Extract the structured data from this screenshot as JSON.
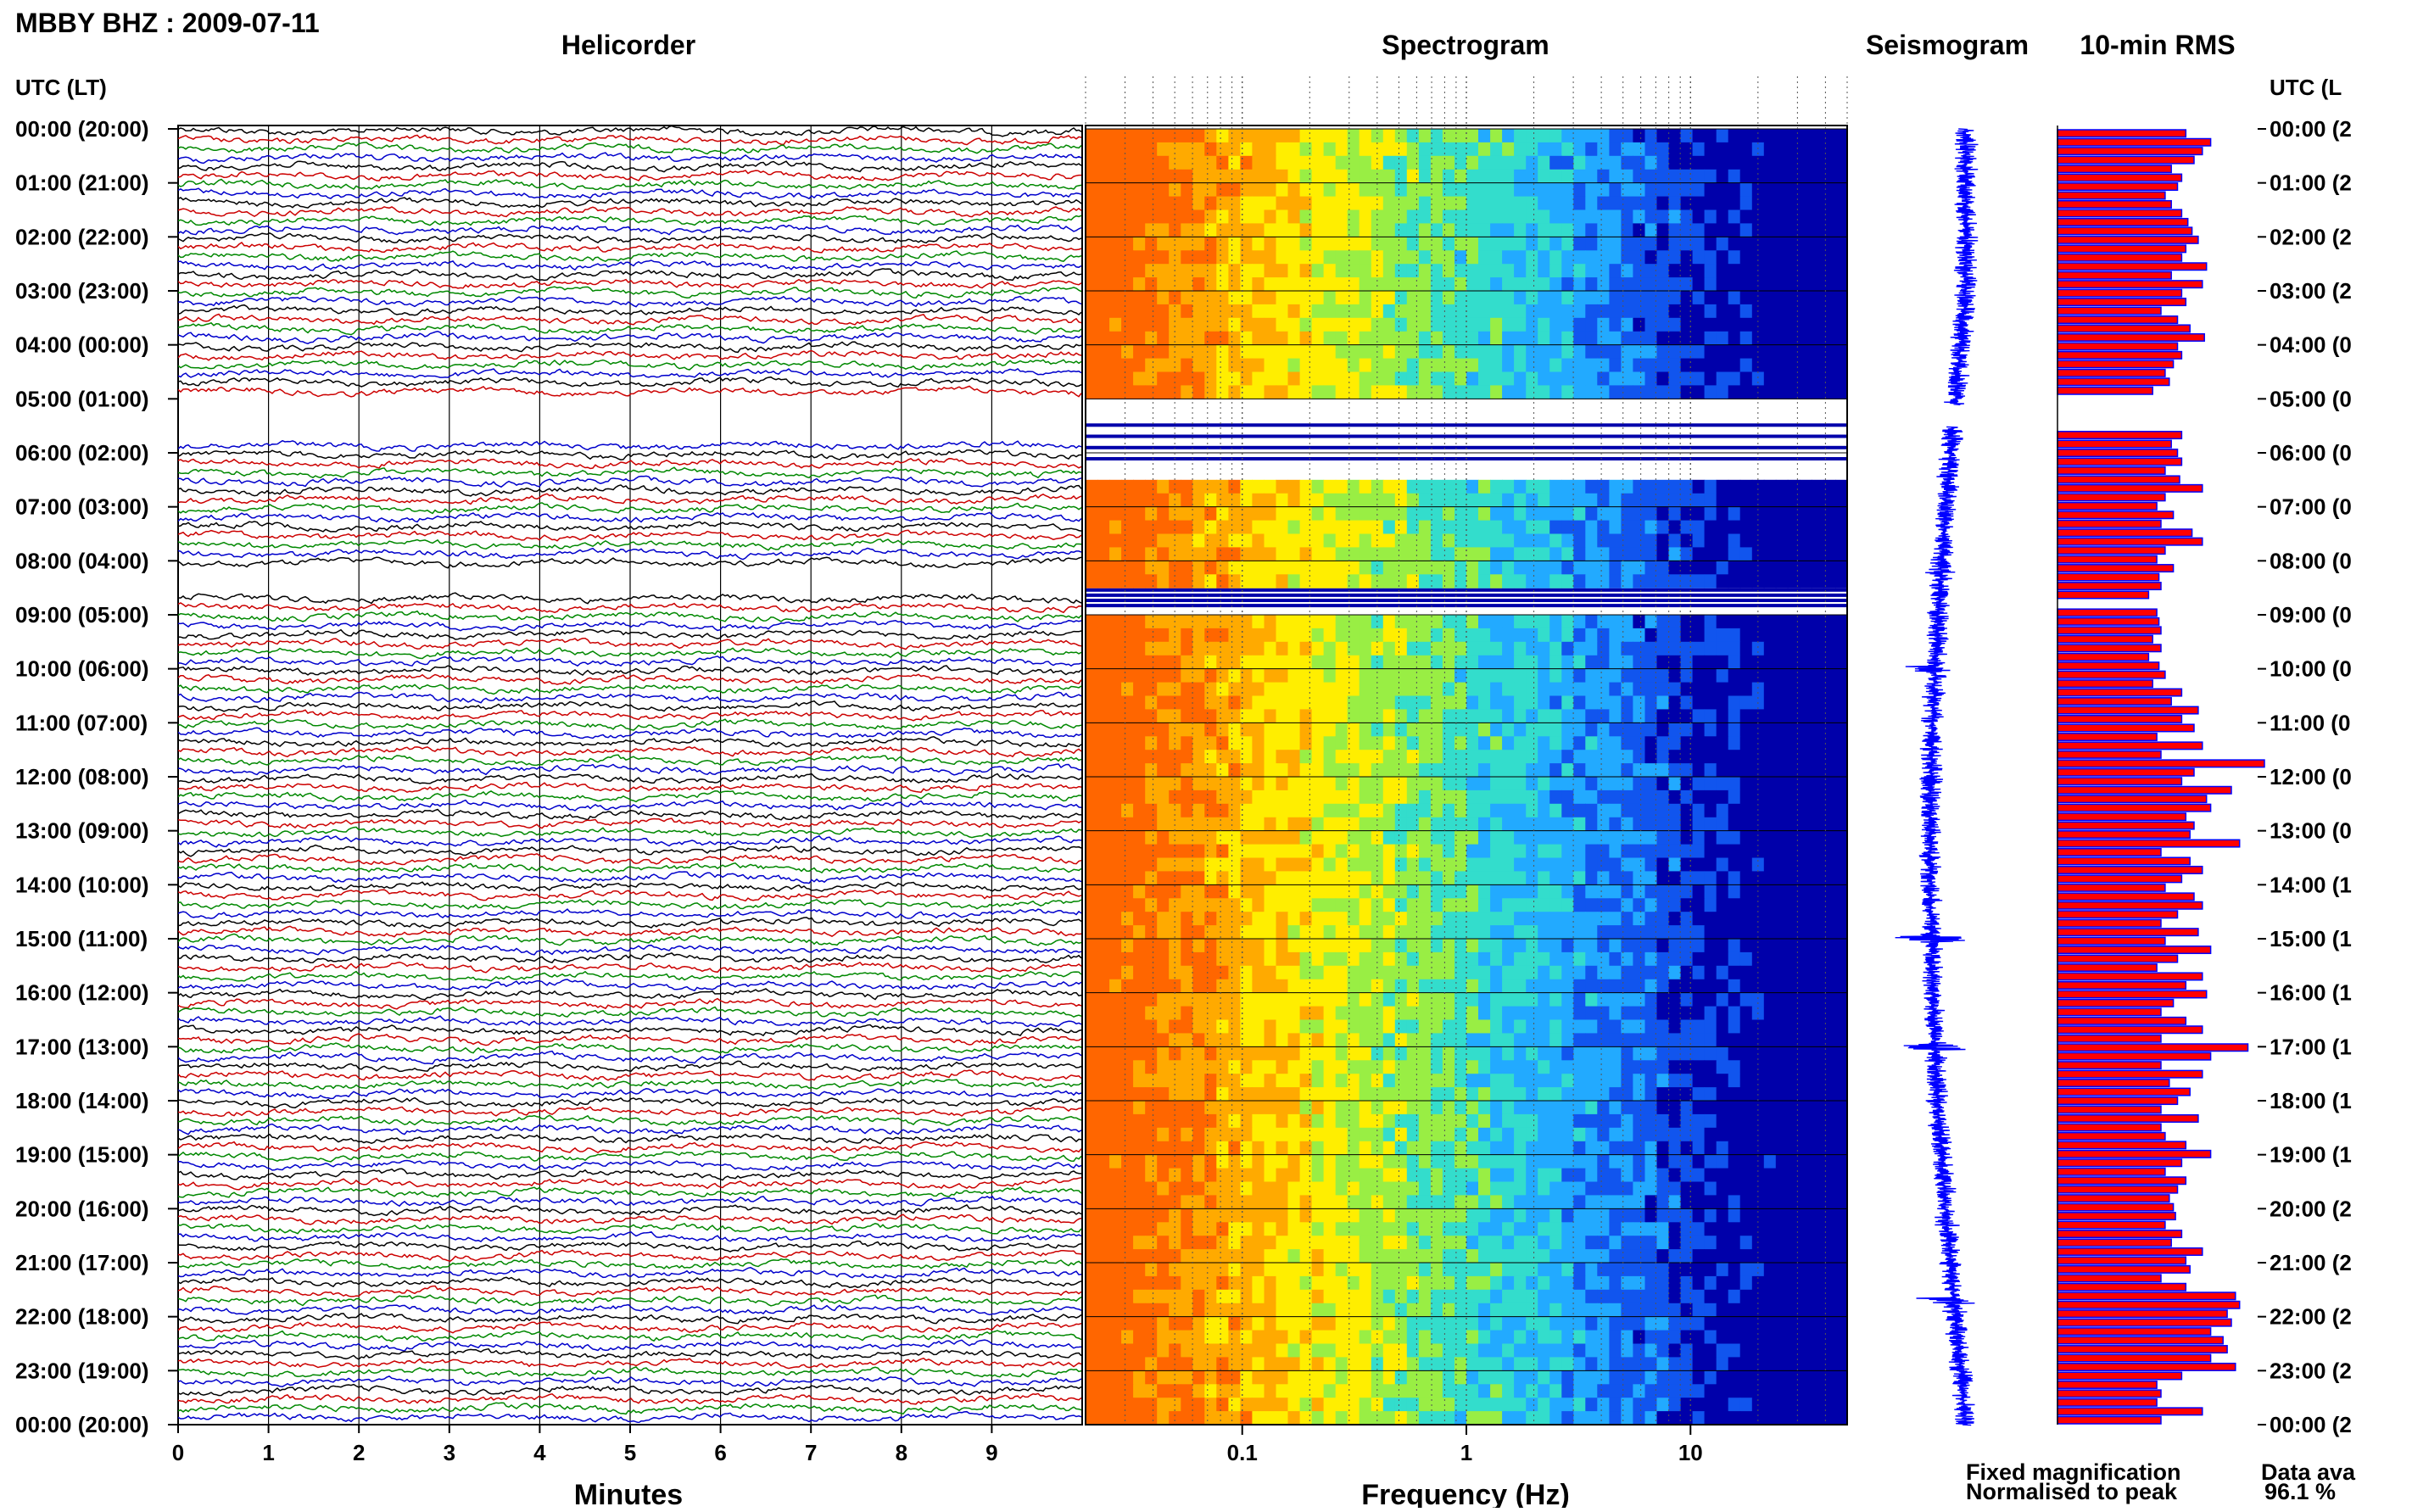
{
  "header": {
    "station_title": "MBBY BHZ : 2009-07-11"
  },
  "panels": {
    "helicorder": "Helicorder",
    "spectrogram": "Spectrogram",
    "seismogram": "Seismogram",
    "rms": "10-min RMS"
  },
  "axis": {
    "utc_label_left": "UTC (LT)",
    "utc_label_right": "UTC (L",
    "minutes_label": "Minutes",
    "frequency_label": "Frequency (Hz)"
  },
  "legend": {
    "fixed": "Fixed magnification",
    "fixed_color": "#0000ff",
    "normalised": "Normalised to peak",
    "normalised_color": "#ff0000"
  },
  "availability": {
    "label": "Data ava",
    "value": "96.1 %"
  },
  "chart_data": [
    {
      "type": "line",
      "title": "Helicorder",
      "xlabel": "Minutes",
      "x_ticks": [
        "0",
        "1",
        "2",
        "3",
        "4",
        "5",
        "6",
        "7",
        "8",
        "9"
      ],
      "xlim": [
        0,
        10
      ],
      "y_tick_labels_left": [
        "00:00 (20:00)",
        "01:00 (21:00)",
        "02:00 (22:00)",
        "03:00 (23:00)",
        "04:00 (00:00)",
        "05:00 (01:00)",
        "06:00 (02:00)",
        "07:00 (03:00)",
        "08:00 (04:00)",
        "09:00 (05:00)",
        "10:00 (06:00)",
        "11:00 (07:00)",
        "12:00 (08:00)",
        "13:00 (09:00)",
        "14:00 (10:00)",
        "15:00 (11:00)",
        "16:00 (12:00)",
        "17:00 (13:00)",
        "18:00 (14:00)",
        "19:00 (15:00)",
        "20:00 (16:00)",
        "21:00 (17:00)",
        "22:00 (18:00)",
        "23:00 (19:00)",
        "00:00 (20:00)"
      ],
      "y_tick_labels_right": [
        "00:00 (2",
        "01:00 (2",
        "02:00 (2",
        "03:00 (2",
        "04:00 (0",
        "05:00 (0",
        "06:00 (0",
        "07:00 (0",
        "08:00 (0",
        "09:00 (0",
        "10:00 (0",
        "11:00 (0",
        "12:00 (0",
        "13:00 (0",
        "14:00 (1",
        "15:00 (1",
        "16:00 (1",
        "17:00 (1",
        "18:00 (1",
        "19:00 (1",
        "20:00 (2",
        "21:00 (2",
        "22:00 (2",
        "23:00 (2",
        "00:00 (2"
      ],
      "trace_colors": [
        "#000000",
        "#cc0000",
        "#008800",
        "#0000cc"
      ],
      "traces_per_hour": 6,
      "gaps_hours": [
        [
          4.9,
          5.8
        ],
        [
          8.1,
          8.6
        ]
      ]
    },
    {
      "type": "heatmap",
      "title": "Spectrogram",
      "xlabel": "Frequency (Hz)",
      "x_scale": "log",
      "x_ticks": [
        "0.1",
        "1",
        "10"
      ],
      "xlim": [
        0.02,
        50
      ],
      "colormap": [
        "#ff6600",
        "#ffaa00",
        "#ffee00",
        "#99ee44",
        "#33ddcc",
        "#22aaff",
        "#1155ee",
        "#0000aa"
      ],
      "gaps_hours": [
        [
          5.0,
          6.3
        ],
        [
          8.3,
          8.9
        ]
      ]
    },
    {
      "type": "line",
      "title": "Seismogram",
      "color": "#0000ff",
      "gaps_hours": [
        [
          5.1,
          5.5
        ]
      ],
      "peak_hours": [
        [
          8.2,
          0.2
        ],
        [
          10.0,
          0.4
        ],
        [
          15.0,
          0.5
        ],
        [
          17.0,
          0.6
        ],
        [
          21.7,
          0.6
        ]
      ]
    },
    {
      "type": "bar",
      "title": "10-min RMS",
      "orientation": "horizontal",
      "colors": {
        "fixed": "#0000ff",
        "normalised": "#ff0000"
      },
      "xlim": [
        0,
        1
      ],
      "bins_per_hour": 6,
      "values": [
        0.62,
        0.74,
        0.7,
        0.66,
        0.55,
        0.6,
        0.58,
        0.52,
        0.55,
        0.6,
        0.63,
        0.65,
        0.68,
        0.62,
        0.6,
        0.72,
        0.55,
        0.7,
        0.6,
        0.62,
        0.5,
        0.58,
        0.64,
        0.71,
        0.58,
        0.6,
        0.56,
        0.52,
        0.54,
        0.46,
        0,
        0,
        0,
        0,
        0.6,
        0.55,
        0.58,
        0.6,
        0.52,
        0.59,
        0.7,
        0.52,
        0.48,
        0.56,
        0.5,
        0.65,
        0.7,
        0.52,
        0.48,
        0.56,
        0.49,
        0.5,
        0.44,
        0,
        0.48,
        0.49,
        0.5,
        0.46,
        0.5,
        0.44,
        0.49,
        0.52,
        0.46,
        0.6,
        0.55,
        0.68,
        0.6,
        0.66,
        0.48,
        0.7,
        0.5,
        1.0,
        0.66,
        0.6,
        0.84,
        0.72,
        0.74,
        0.62,
        0.66,
        0.64,
        0.88,
        0.5,
        0.64,
        0.7,
        0.6,
        0.52,
        0.66,
        0.7,
        0.58,
        0.5,
        0.68,
        0.52,
        0.74,
        0.58,
        0.48,
        0.7,
        0.62,
        0.72,
        0.56,
        0.5,
        0.62,
        0.7,
        0.5,
        0.92,
        0.74,
        0.5,
        0.7,
        0.54,
        0.64,
        0.58,
        0.5,
        0.68,
        0.5,
        0.52,
        0.62,
        0.74,
        0.6,
        0.52,
        0.62,
        0.58,
        0.54,
        0.56,
        0.57,
        0.52,
        0.6,
        0.55,
        0.7,
        0.62,
        0.64,
        0.5,
        0.62,
        0.86,
        0.88,
        0.82,
        0.84,
        0.74,
        0.8,
        0.82,
        0.74,
        0.86,
        0.6,
        0.48,
        0.5,
        0.48,
        0.7,
        0.5
      ]
    }
  ]
}
